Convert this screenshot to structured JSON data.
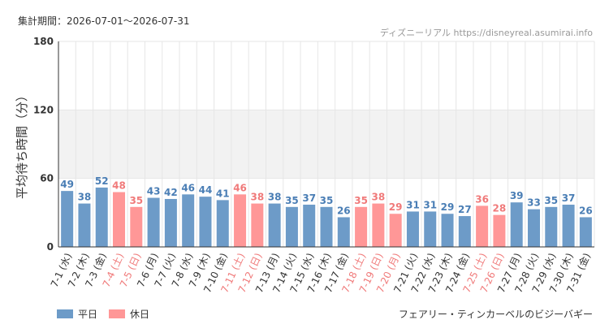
{
  "header": {
    "period_label": "集計期間：2026-07-01～2026-07-31",
    "source": "ディズニーリアル https://disneyreal.asumirai.info"
  },
  "footer": {
    "attraction": "フェアリー・ティンカーベルのビジーバギー"
  },
  "legend": {
    "weekday_label": "平日",
    "holiday_label": "休日"
  },
  "colors": {
    "weekday_bar": "#6d9bc8",
    "holiday_bar": "#ff9797",
    "weekday_text": "#4a7eb5",
    "holiday_text": "#f07a7a",
    "band": "#f2f2f2",
    "grid": "#e6e6e6",
    "axis": "#333333"
  },
  "chart_data": {
    "type": "bar",
    "title": "",
    "xlabel": "",
    "ylabel": "平均待ち時間（分）",
    "ylim": [
      0,
      180
    ],
    "yticks": [
      0,
      60,
      120,
      180
    ],
    "shaded_band": [
      60,
      120
    ],
    "grid": true,
    "legend_position": "bottom-left",
    "categories": [
      "7-1 (水)",
      "7-2 (木)",
      "7-3 (金)",
      "7-4 (土)",
      "7-5 (日)",
      "7-6 (月)",
      "7-7 (火)",
      "7-8 (水)",
      "7-9 (木)",
      "7-10 (金)",
      "7-11 (土)",
      "7-12 (日)",
      "7-13 (月)",
      "7-14 (火)",
      "7-15 (水)",
      "7-16 (木)",
      "7-17 (金)",
      "7-18 (土)",
      "7-19 (日)",
      "7-20 (月)",
      "7-21 (火)",
      "7-22 (水)",
      "7-23 (木)",
      "7-24 (金)",
      "7-25 (土)",
      "7-26 (日)",
      "7-27 (月)",
      "7-28 (火)",
      "7-29 (水)",
      "7-30 (木)",
      "7-31 (金)"
    ],
    "values": [
      49,
      38,
      52,
      48,
      35,
      43,
      42,
      46,
      44,
      41,
      46,
      38,
      38,
      35,
      37,
      35,
      26,
      35,
      38,
      29,
      31,
      31,
      29,
      27,
      36,
      28,
      39,
      33,
      35,
      37,
      26
    ],
    "day_type": [
      "weekday",
      "weekday",
      "weekday",
      "holiday",
      "holiday",
      "weekday",
      "weekday",
      "weekday",
      "weekday",
      "weekday",
      "holiday",
      "holiday",
      "weekday",
      "weekday",
      "weekday",
      "weekday",
      "weekday",
      "holiday",
      "holiday",
      "holiday",
      "weekday",
      "weekday",
      "weekday",
      "weekday",
      "holiday",
      "holiday",
      "weekday",
      "weekday",
      "weekday",
      "weekday",
      "weekday"
    ]
  }
}
